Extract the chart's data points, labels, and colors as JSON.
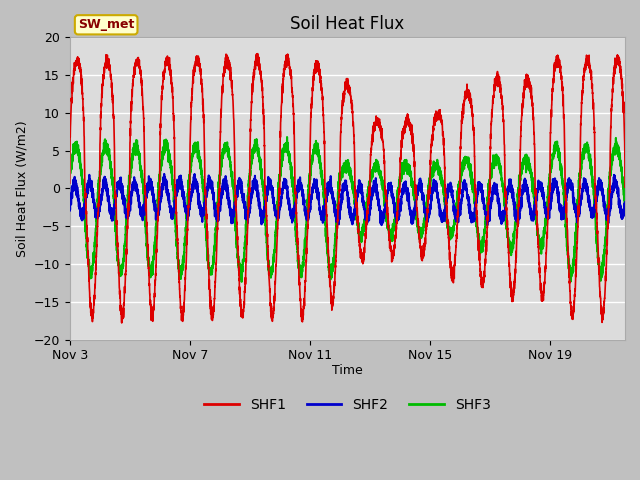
{
  "title": "Soil Heat Flux",
  "ylabel": "Soil Heat Flux (W/m2)",
  "xlabel": "Time",
  "xlim_days": [
    0,
    18.5
  ],
  "ylim": [
    -20,
    20
  ],
  "yticks": [
    -20,
    -15,
    -10,
    -5,
    0,
    5,
    10,
    15,
    20
  ],
  "xtick_labels": [
    "Nov 3",
    "Nov 7",
    "Nov 11",
    "Nov 15",
    "Nov 19"
  ],
  "xtick_positions": [
    0,
    4,
    8,
    12,
    16
  ],
  "fig_bg_color": "#c0c0c0",
  "plot_bg_color": "#dcdcdc",
  "colors": {
    "SHF1": "#dd0000",
    "SHF2": "#0000cc",
    "SHF3": "#00bb00"
  },
  "line_widths": {
    "SHF1": 1.2,
    "SHF2": 1.5,
    "SHF3": 1.5
  },
  "legend_label": "SW_met",
  "legend_bg": "#ffffcc",
  "legend_border": "#ccaa00",
  "grid_color": "#c8c8c8",
  "title_fontsize": 12,
  "label_fontsize": 9,
  "tick_fontsize": 9
}
